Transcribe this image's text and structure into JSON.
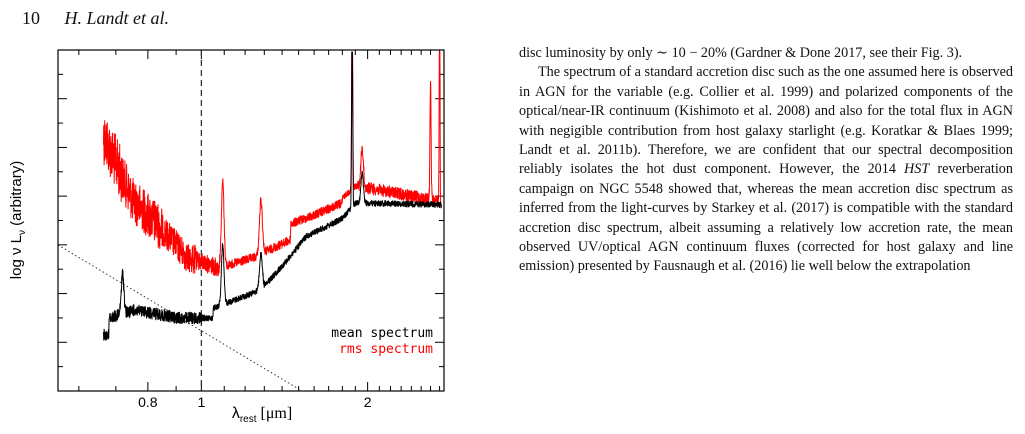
{
  "header": {
    "page_number": "10",
    "authors": "H. Landt et al."
  },
  "figure": {
    "y_label": "log ν L",
    "y_label_sub": "ν",
    "y_label_suffix": " (arbitrary)",
    "x_label": "λ",
    "x_label_sub": "rest",
    "x_label_suffix": " [μm]",
    "legend": {
      "mean": "mean spectrum",
      "rms": "rms spectrum"
    }
  },
  "chart_data": {
    "type": "line",
    "xlabel": "λrest [μm]",
    "ylabel": "log ν Lν (arbitrary)",
    "x_scale": "log",
    "xlim": [
      0.55,
      2.75
    ],
    "x_ticks": [
      0.8,
      1,
      2
    ],
    "x_tick_labels": [
      "0.8",
      "1",
      "2"
    ],
    "legend_position": "bottom-right",
    "reference_line_x": 1.0,
    "series": [
      {
        "name": "mean spectrum",
        "color": "#000000"
      },
      {
        "name": "rms spectrum",
        "color": "#ff0000"
      }
    ]
  },
  "body_text": {
    "p1": "disc luminosity by only ∼ 10 − 20% (Gardner & Done 2017, see their Fig. 3).",
    "p2_a": "The spectrum of a standard accretion disc such as the one assumed here is observed in AGN for the variable (e.g. Collier et al. 1999) and polarized components of the optical/near-IR continuum (Kishimoto et al. 2008) and also for the total flux in AGN with negigible contribution from host galaxy starlight (e.g. Koratkar & Blaes 1999; Landt et al. 2011b). Therefore, we are confident that our spectral decomposition reliably isolates the hot dust component. However, the 2014 ",
    "p2_em": "HST",
    "p2_b": " reverberation campaign on NGC 5548 showed that, whereas the mean accretion disc spectrum as inferred from the light-curves by Starkey et al. (2017) is compatible with the standard accretion disc spectrum, albeit assuming a relatively low accretion rate, the mean observed UV/optical AGN continuum fluxes (corrected for host galaxy and line emission) presented by Fausnaugh et al. (2016) lie well below the extrapolation"
  }
}
